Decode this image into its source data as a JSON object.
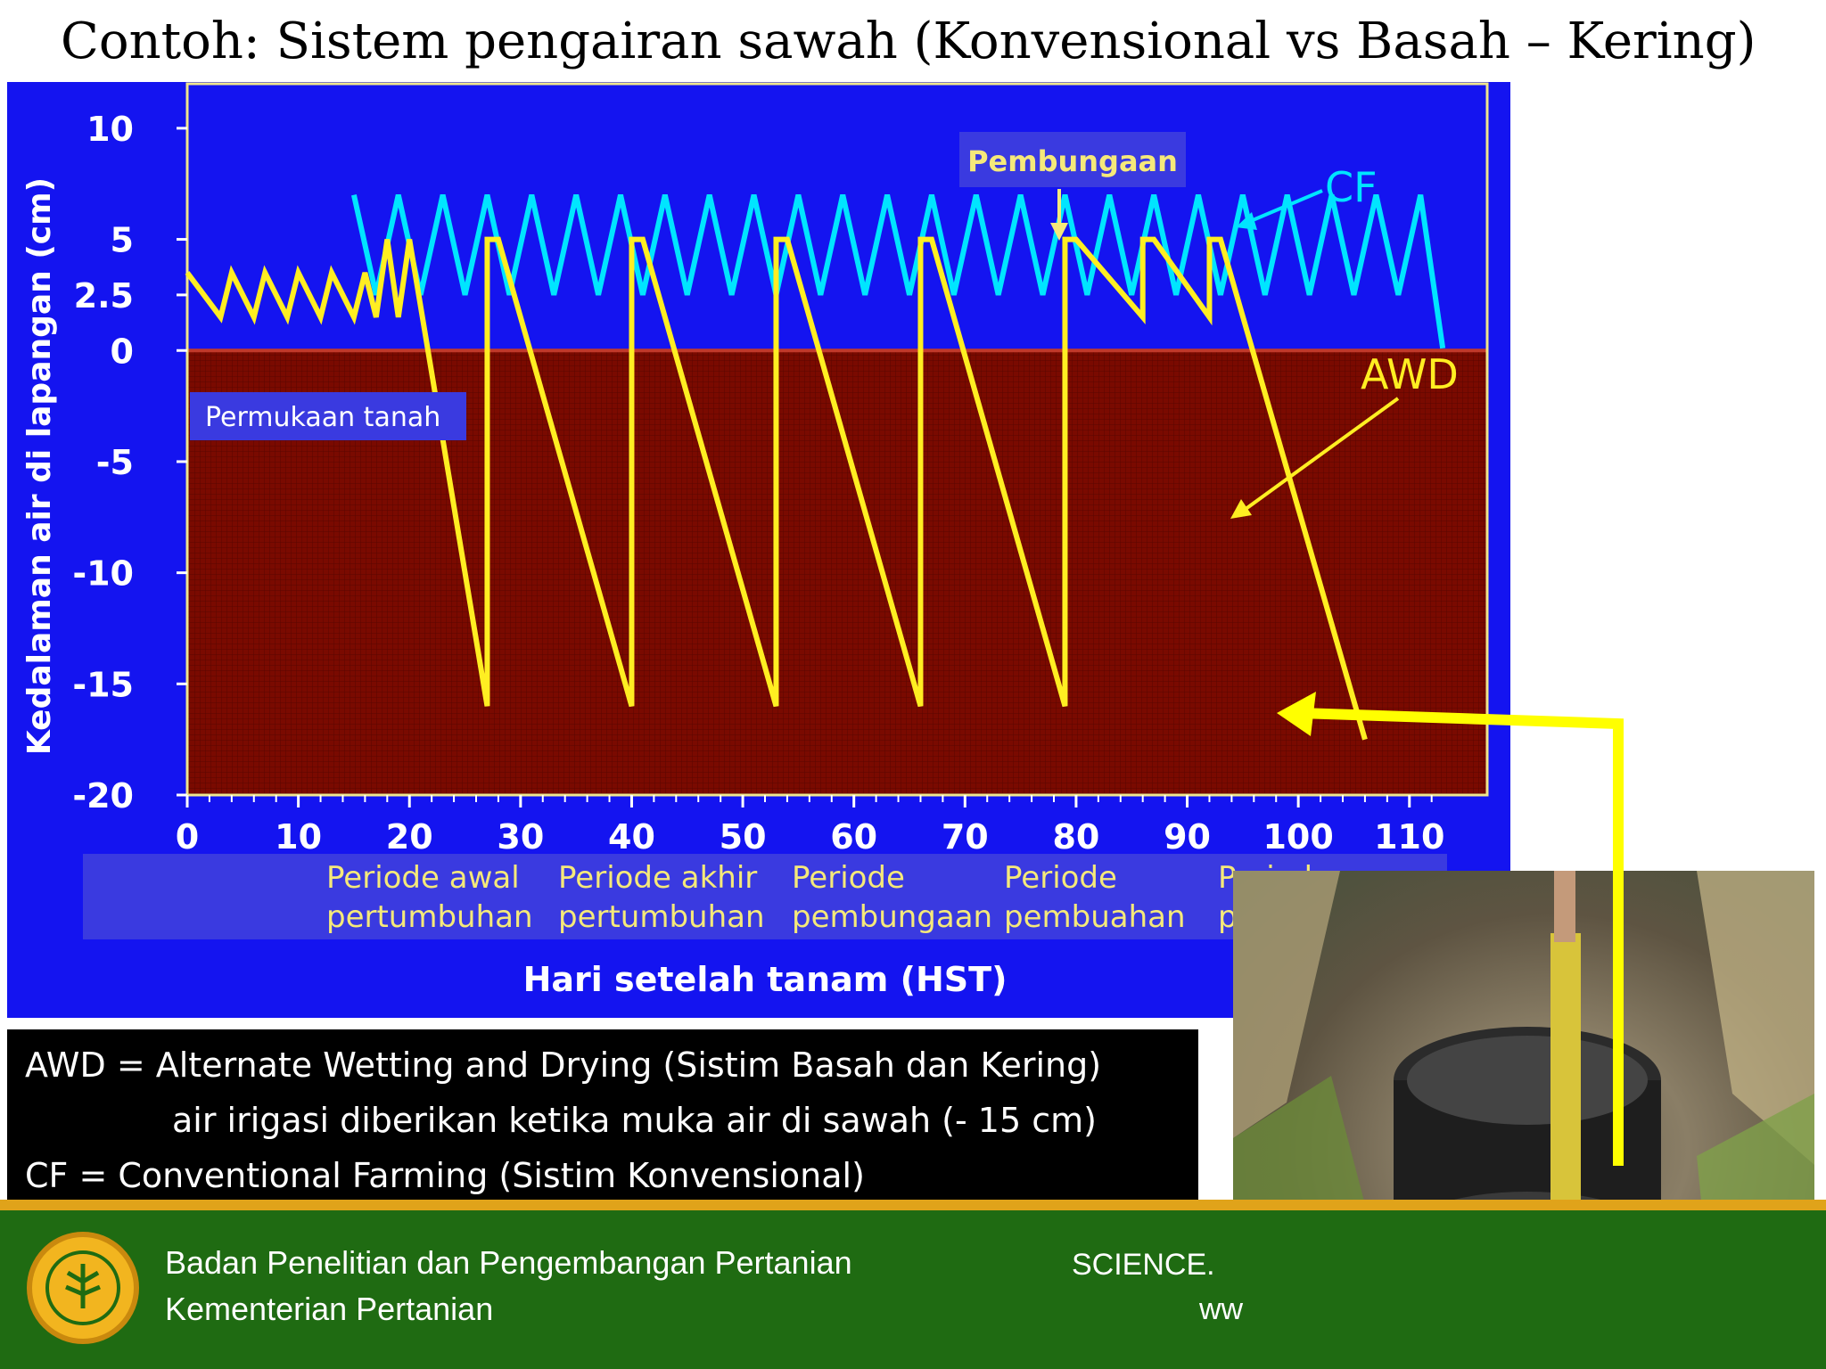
{
  "slide": {
    "title": "Contoh: Sistem pengairan sawah (Konvensional vs Basah – Kering)"
  },
  "chart_data": {
    "type": "line",
    "ylabel": "Kedalaman air di lapangan (cm)",
    "xlabel": "Hari setelah tanam (HST)",
    "y_ticks": [
      "10",
      "5",
      "2.5",
      "0",
      "-5",
      "-10",
      "-15",
      "-20"
    ],
    "x_ticks": [
      "0",
      "10",
      "20",
      "30",
      "40",
      "50",
      "60",
      "70",
      "80",
      "90",
      "100",
      "110"
    ],
    "xlim": [
      0,
      117
    ],
    "ylim": [
      -20,
      12
    ],
    "grid": false,
    "annotations": {
      "soil_surface": "Permukaan  tanah",
      "flowering": "Pembungaan",
      "cf_label": "CF",
      "awd_label": "AWD"
    },
    "periods": [
      {
        "label1": "Periode awal",
        "label2": "pertumbuhan"
      },
      {
        "label1": "Periode akhir",
        "label2": "pertumbuhan"
      },
      {
        "label1": "Periode",
        "label2": "pembungaan"
      },
      {
        "label1": "Periode",
        "label2": "pembuahan"
      },
      {
        "label1": "Periode",
        "label2": "pematangan"
      }
    ],
    "series": [
      {
        "name": "CF",
        "color": "#00e5ff",
        "x": [
          15,
          17,
          19,
          21,
          23,
          25,
          27,
          29,
          31,
          33,
          35,
          37,
          39,
          41,
          43,
          45,
          47,
          49,
          51,
          53,
          55,
          57,
          59,
          61,
          63,
          65,
          67,
          69,
          71,
          73,
          75,
          77,
          79,
          81,
          83,
          85,
          87,
          89,
          91,
          93,
          95,
          97,
          99,
          101,
          103,
          105,
          107,
          109,
          111,
          113
        ],
        "y": [
          7,
          2.5,
          7,
          2.5,
          7,
          2.5,
          7,
          2.5,
          7,
          2.5,
          7,
          2.5,
          7,
          2.5,
          7,
          2.5,
          7,
          2.5,
          7,
          2.5,
          7,
          2.5,
          7,
          2.5,
          7,
          2.5,
          7,
          2.5,
          7,
          2.5,
          7,
          2.5,
          7,
          2.5,
          7,
          2.5,
          7,
          2.5,
          7,
          2.5,
          7,
          2.5,
          7,
          2.5,
          7,
          2.5,
          7,
          2.5,
          7,
          0.1
        ]
      },
      {
        "name": "AWD",
        "color": "#ffee22",
        "x": [
          0,
          3,
          4,
          6,
          7,
          9,
          10,
          12,
          13,
          15,
          16,
          17,
          18,
          19,
          20,
          27,
          27,
          28,
          40,
          40,
          41,
          53,
          53,
          54,
          66,
          66,
          67,
          79,
          79,
          80,
          86,
          86,
          87,
          92,
          92,
          93,
          106
        ],
        "y": [
          3.5,
          1.5,
          3.5,
          1.5,
          3.5,
          1.5,
          3.5,
          1.5,
          3.5,
          1.5,
          3.5,
          1.5,
          5,
          1.5,
          5,
          -16,
          5,
          5,
          -16,
          5,
          5,
          -16,
          5,
          5,
          -16,
          5,
          5,
          -16,
          5,
          5,
          1.5,
          5,
          5,
          1.5,
          5,
          5,
          -17.5
        ]
      }
    ]
  },
  "legend_box": {
    "line1": "AWD = Alternate Wetting and Drying (Sistim Basah dan Kering)",
    "line2": "air irigasi diberikan ketika muka air di sawah (- 15 cm)",
    "line3": "CF = Conventional Farming (Sistim Konvensional)"
  },
  "footer": {
    "org1": "Badan Penelitian dan Pengembangan Pertanian",
    "org2": "Kementerian Pertanian",
    "right1": "SCIENCE.",
    "right2": "ww"
  },
  "colors": {
    "chart_background": "#1414f0",
    "soil": "#7a0a00",
    "axis": "#f0e68c",
    "footer": "#1f6b12",
    "arrow": "#ffff00"
  }
}
